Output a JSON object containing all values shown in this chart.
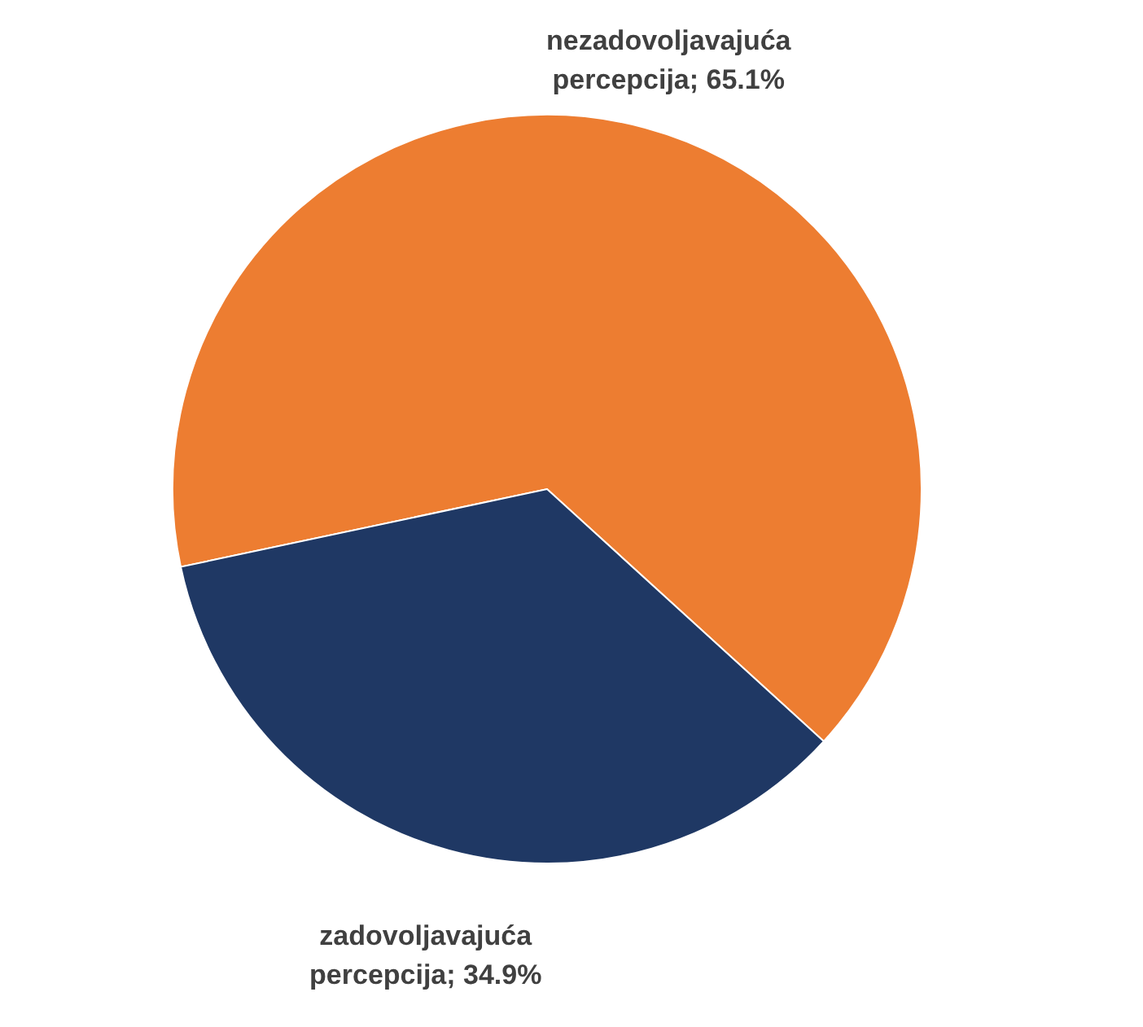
{
  "chart_data": {
    "type": "pie",
    "categories": [
      "nezadovoljavajuća percepcija",
      "zadovoljavajuća percepcija"
    ],
    "values": [
      65.1,
      34.9
    ],
    "value_labels": [
      "65.1%",
      "34.9%"
    ],
    "colors": [
      "#ed7d31",
      "#1f3864"
    ],
    "legend": false
  }
}
